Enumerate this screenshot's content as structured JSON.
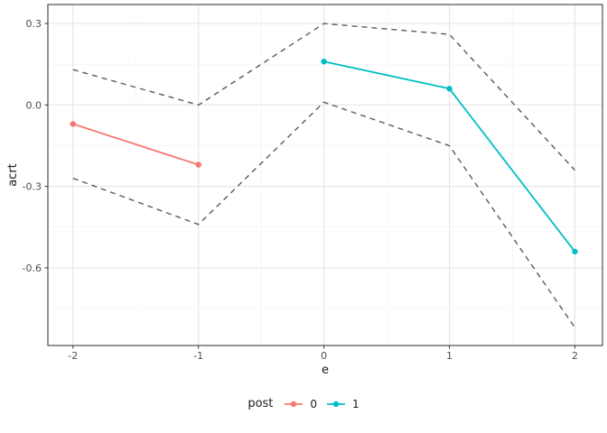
{
  "chart_data": {
    "type": "line",
    "title": "",
    "xlabel": "e",
    "ylabel": "acrt",
    "xlim": [
      -2.2,
      2.22
    ],
    "ylim": [
      -0.886,
      0.37
    ],
    "grid": true,
    "x_ticks": [
      {
        "v": -2,
        "label": "-2"
      },
      {
        "v": -1,
        "label": "-1"
      },
      {
        "v": 0,
        "label": "0"
      },
      {
        "v": 1,
        "label": "1"
      },
      {
        "v": 2,
        "label": "2"
      }
    ],
    "y_ticks": [
      {
        "v": 0.3,
        "label": "0.3"
      },
      {
        "v": 0.0,
        "label": "0.0"
      },
      {
        "v": -0.3,
        "label": "-0.3"
      },
      {
        "v": -0.6,
        "label": "-0.6"
      }
    ],
    "x_minor": [
      -1.5,
      -0.5,
      0.5,
      1.5
    ],
    "y_minor": [
      0.15,
      -0.15,
      -0.45,
      -0.75
    ],
    "series": [
      {
        "name": "post-0",
        "legend_label": "0",
        "color": "#F8766D",
        "style": "solid",
        "points": true,
        "x": [
          -2,
          -1
        ],
        "y": [
          -0.07,
          -0.22
        ]
      },
      {
        "name": "post-1",
        "legend_label": "1",
        "color": "#00BFC4",
        "style": "solid",
        "points": true,
        "x": [
          0,
          1,
          2
        ],
        "y": [
          0.16,
          0.06,
          -0.54
        ]
      },
      {
        "name": "upper-bound",
        "legend_label": null,
        "color": "#5A5A5A",
        "style": "dashed",
        "points": false,
        "x": [
          -2,
          -1,
          0,
          1,
          2
        ],
        "y": [
          0.13,
          0.0,
          0.3,
          0.26,
          -0.24
        ]
      },
      {
        "name": "lower-bound",
        "legend_label": null,
        "color": "#5A5A5A",
        "style": "dashed",
        "points": false,
        "x": [
          -2,
          -1,
          0,
          1,
          2
        ],
        "y": [
          -0.27,
          -0.44,
          0.01,
          -0.15,
          -0.82
        ]
      }
    ],
    "legend": {
      "title": "post",
      "position": "bottom",
      "entries": [
        {
          "label": "0",
          "color": "#F8766D"
        },
        {
          "label": "1",
          "color": "#00BFC4"
        }
      ]
    }
  },
  "colors": {
    "panel_border": "#4D4D4D",
    "grid_major": "#E5E5E5",
    "grid_minor": "#F2F2F2",
    "tick_mark": "#333333",
    "tick_text": "#4D4D4D",
    "axis_title": "#1A1A1A",
    "background": "#FFFFFF"
  }
}
